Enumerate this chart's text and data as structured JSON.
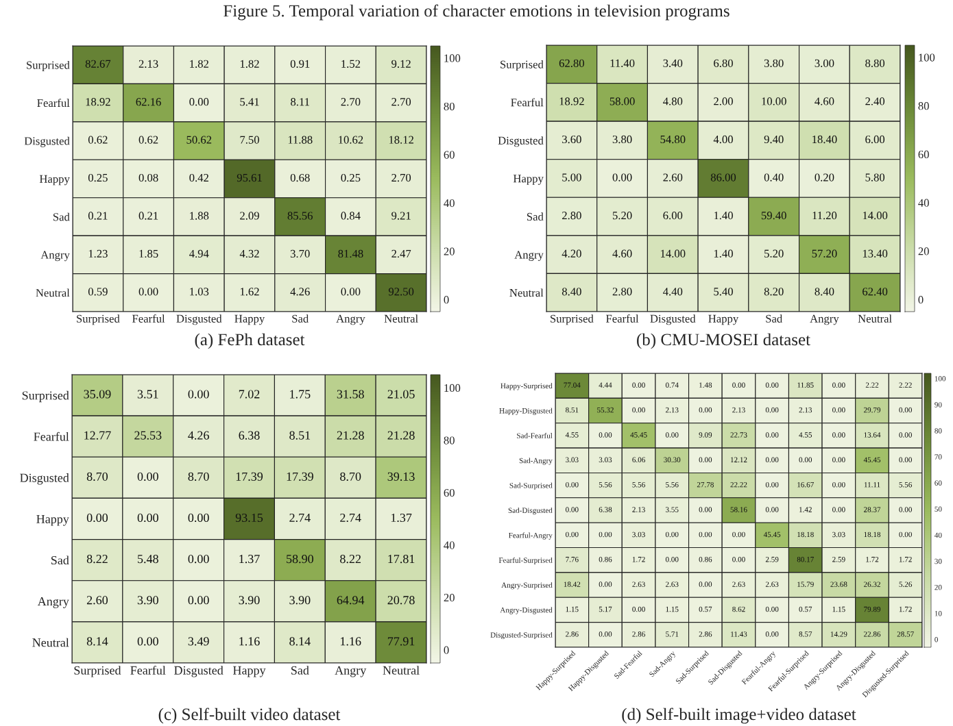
{
  "chart_data": [
    {
      "type": "heatmap",
      "title": "Figure 5. Temporal variation of character emotions in television programs",
      "subtitle": "(a) FePh dataset",
      "categories": [
        "Surprised",
        "Fearful",
        "Disgusted",
        "Happy",
        "Sad",
        "Angry",
        "Neutral"
      ],
      "y_categories": [
        "Surprised",
        "Fearful",
        "Disgusted",
        "Happy",
        "Sad",
        "Angry",
        "Neutral"
      ],
      "cells": [
        [
          82.67,
          2.13,
          1.82,
          1.82,
          0.91,
          1.52,
          9.12
        ],
        [
          18.92,
          62.16,
          0.0,
          5.41,
          8.11,
          2.7,
          2.7
        ],
        [
          0.62,
          0.62,
          50.62,
          7.5,
          11.88,
          10.62,
          18.12
        ],
        [
          0.25,
          0.08,
          0.42,
          95.61,
          0.68,
          0.25,
          2.7
        ],
        [
          0.21,
          0.21,
          1.88,
          2.09,
          85.56,
          0.84,
          9.21
        ],
        [
          1.23,
          1.85,
          4.94,
          4.32,
          3.7,
          81.48,
          2.47
        ],
        [
          0.59,
          0.0,
          1.03,
          1.62,
          4.26,
          0.0,
          92.5
        ]
      ],
      "cell_labels": [
        [
          "82.67",
          "2.13",
          "1.82",
          "1.82",
          "0.91",
          "1.52",
          "9.12"
        ],
        [
          "18.92",
          "62.16",
          "0.00",
          "5.41",
          "8.11",
          "2.70",
          "2.70"
        ],
        [
          "0.62",
          "0.62",
          "50.62",
          "7.50",
          "11.88",
          "10.62",
          "18.12"
        ],
        [
          "0.25",
          "0.08",
          "0.42",
          "95.61",
          "0.68",
          "0.25",
          "2.70"
        ],
        [
          "0.21",
          "0.21",
          "1.88",
          "2.09",
          "85.56",
          "0.84",
          "9.21"
        ],
        [
          "1.23",
          "1.85",
          "4.94",
          "4.32",
          "3.70",
          "81.48",
          "2.47"
        ],
        [
          "0.59",
          "0.00",
          "1.03",
          "1.62",
          "4.26",
          "0.00",
          "92.50"
        ]
      ],
      "clim": [
        -5,
        105
      ],
      "cticks": [
        0,
        20,
        40,
        60,
        80,
        100
      ]
    },
    {
      "type": "heatmap",
      "subtitle": "(b) CMU-MOSEI dataset",
      "categories": [
        "Surprised",
        "Fearful",
        "Disgusted",
        "Happy",
        "Sad",
        "Angry",
        "Neutral"
      ],
      "y_categories": [
        "Surprised",
        "Fearful",
        "Disgusted",
        "Happy",
        "Sad",
        "Angry",
        "Neutral"
      ],
      "cells": [
        [
          62.8,
          11.4,
          3.4,
          6.8,
          3.8,
          3.0,
          8.8
        ],
        [
          18.92,
          58.0,
          4.8,
          2.0,
          10.0,
          4.6,
          2.4
        ],
        [
          3.6,
          3.8,
          54.8,
          4.0,
          9.4,
          18.4,
          6.0
        ],
        [
          5.0,
          0.0,
          2.6,
          86.0,
          0.4,
          0.2,
          5.8
        ],
        [
          2.8,
          5.2,
          6.0,
          1.4,
          59.4,
          11.2,
          14.0
        ],
        [
          4.2,
          4.6,
          14.0,
          1.4,
          5.2,
          57.2,
          13.4
        ],
        [
          8.4,
          2.8,
          4.4,
          5.4,
          8.2,
          8.4,
          62.4
        ]
      ],
      "cell_labels": [
        [
          "62.80",
          "11.40",
          "3.40",
          "6.80",
          "3.80",
          "3.00",
          "8.80"
        ],
        [
          "18.92",
          "58.00",
          "4.80",
          "2.00",
          "10.00",
          "4.60",
          "2.40"
        ],
        [
          "3.60",
          "3.80",
          "54.80",
          "4.00",
          "9.40",
          "18.40",
          "6.00"
        ],
        [
          "5.00",
          "0.00",
          "2.60",
          "86.00",
          "0.40",
          "0.20",
          "5.80"
        ],
        [
          "2.80",
          "5.20",
          "6.00",
          "1.40",
          "59.40",
          "11.20",
          "14.00"
        ],
        [
          "4.20",
          "4.60",
          "14.00",
          "1.40",
          "5.20",
          "57.20",
          "13.40"
        ],
        [
          "8.40",
          "2.80",
          "4.40",
          "5.40",
          "8.20",
          "8.40",
          "62.40"
        ]
      ],
      "clim": [
        -5,
        105
      ],
      "cticks": [
        0,
        20,
        40,
        60,
        80,
        100
      ]
    },
    {
      "type": "heatmap",
      "subtitle": "(c) Self-built video dataset",
      "categories": [
        "Surprised",
        "Fearful",
        "Disgusted",
        "Happy",
        "Sad",
        "Angry",
        "Neutral"
      ],
      "y_categories": [
        "Surprised",
        "Fearful",
        "Disgusted",
        "Happy",
        "Sad",
        "Angry",
        "Neutral"
      ],
      "cells": [
        [
          35.09,
          3.51,
          0.0,
          7.02,
          1.75,
          31.58,
          21.05
        ],
        [
          12.77,
          25.53,
          4.26,
          6.38,
          8.51,
          21.28,
          21.28
        ],
        [
          8.7,
          0.0,
          8.7,
          17.39,
          17.39,
          8.7,
          39.13
        ],
        [
          0.0,
          0.0,
          0.0,
          93.15,
          2.74,
          2.74,
          1.37
        ],
        [
          8.22,
          5.48,
          0.0,
          1.37,
          58.9,
          8.22,
          17.81
        ],
        [
          2.6,
          3.9,
          0.0,
          3.9,
          3.9,
          64.94,
          20.78
        ],
        [
          8.14,
          0.0,
          3.49,
          1.16,
          8.14,
          1.16,
          77.91
        ]
      ],
      "cell_labels": [
        [
          "35.09",
          "3.51",
          "0.00",
          "7.02",
          "1.75",
          "31.58",
          "21.05"
        ],
        [
          "12.77",
          "25.53",
          "4.26",
          "6.38",
          "8.51",
          "21.28",
          "21.28"
        ],
        [
          "8.70",
          "0.00",
          "8.70",
          "17.39",
          "17.39",
          "8.70",
          "39.13"
        ],
        [
          "0.00",
          "0.00",
          "0.00",
          "93.15",
          "2.74",
          "2.74",
          "1.37"
        ],
        [
          "8.22",
          "5.48",
          "0.00",
          "1.37",
          "58.90",
          "8.22",
          "17.81"
        ],
        [
          "2.60",
          "3.90",
          "0.00",
          "3.90",
          "3.90",
          "64.94",
          "20.78"
        ],
        [
          "8.14",
          "0.00",
          "3.49",
          "1.16",
          "8.14",
          "1.16",
          "77.91"
        ]
      ],
      "clim": [
        -5,
        105
      ],
      "cticks": [
        0,
        20,
        40,
        60,
        80,
        100
      ]
    },
    {
      "type": "heatmap",
      "subtitle": "(d) Self-built image+video dataset",
      "categories": [
        "Happy-Surprised",
        "Happy-Disgusted",
        "Sad-Fearful",
        "Sad-Angry",
        "Sad-Surprised",
        "Sad-Disgusted",
        "Fearful-Angry",
        "Fearful-Surprised",
        "Angry-Surprised",
        "Angry-Disgusted",
        "Disgusted-Surprised"
      ],
      "y_categories": [
        "Happy-Surprised",
        "Happy-Disgusted",
        "Sad-Fearful",
        "Sad-Angry",
        "Sad-Surprised",
        "Sad-Disgusted",
        "Fearful-Angry",
        "Fearful-Surprised",
        "Angry-Surprised",
        "Angry-Disgusted",
        "Disgusted-Surprised"
      ],
      "cells": [
        [
          77.04,
          4.44,
          0.0,
          0.74,
          1.48,
          0.0,
          0.0,
          11.85,
          0.0,
          2.22,
          2.22
        ],
        [
          8.51,
          55.32,
          0.0,
          2.13,
          0.0,
          2.13,
          0.0,
          2.13,
          0.0,
          29.79,
          0.0
        ],
        [
          4.55,
          0.0,
          45.45,
          0.0,
          9.09,
          22.73,
          0.0,
          4.55,
          0.0,
          13.64,
          0.0
        ],
        [
          3.03,
          3.03,
          6.06,
          30.3,
          0.0,
          12.12,
          0.0,
          0.0,
          0.0,
          45.45,
          0.0
        ],
        [
          0.0,
          5.56,
          5.56,
          5.56,
          27.78,
          22.22,
          0.0,
          16.67,
          0.0,
          11.11,
          5.56
        ],
        [
          0.0,
          6.38,
          2.13,
          3.55,
          0.0,
          58.16,
          0.0,
          1.42,
          0.0,
          28.37,
          0.0
        ],
        [
          0.0,
          0.0,
          3.03,
          0.0,
          0.0,
          0.0,
          45.45,
          18.18,
          3.03,
          18.18,
          0.0
        ],
        [
          7.76,
          0.86,
          1.72,
          0.0,
          0.86,
          0.0,
          2.59,
          80.17,
          2.59,
          1.72,
          1.72
        ],
        [
          18.42,
          0.0,
          2.63,
          2.63,
          0.0,
          2.63,
          2.63,
          15.79,
          23.68,
          26.32,
          5.26
        ],
        [
          1.15,
          5.17,
          0.0,
          1.15,
          0.57,
          8.62,
          0.0,
          0.57,
          1.15,
          79.89,
          1.72
        ],
        [
          2.86,
          0.0,
          2.86,
          5.71,
          2.86,
          11.43,
          0.0,
          8.57,
          14.29,
          22.86,
          28.57
        ]
      ],
      "cell_labels": [
        [
          "77.04",
          "4.44",
          "0.00",
          "0.74",
          "1.48",
          "0.00",
          "0.00",
          "11.85",
          "0.00",
          "2.22",
          "2.22"
        ],
        [
          "8.51",
          "55.32",
          "0.00",
          "2.13",
          "0.00",
          "2.13",
          "0.00",
          "2.13",
          "0.00",
          "29.79",
          "0.00"
        ],
        [
          "4.55",
          "0.00",
          "45.45",
          "0.00",
          "9.09",
          "22.73",
          "0.00",
          "4.55",
          "0.00",
          "13.64",
          "0.00"
        ],
        [
          "3.03",
          "3.03",
          "6.06",
          "30.30",
          "0.00",
          "12.12",
          "0.00",
          "0.00",
          "0.00",
          "45.45",
          "0.00"
        ],
        [
          "0.00",
          "5.56",
          "5.56",
          "5.56",
          "27.78",
          "22.22",
          "0.00",
          "16.67",
          "0.00",
          "11.11",
          "5.56"
        ],
        [
          "0.00",
          "6.38",
          "2.13",
          "3.55",
          "0.00",
          "58.16",
          "0.00",
          "1.42",
          "0.00",
          "28.37",
          "0.00"
        ],
        [
          "0.00",
          "0.00",
          "3.03",
          "0.00",
          "0.00",
          "0.00",
          "45.45",
          "18.18",
          "3.03",
          "18.18",
          "0.00"
        ],
        [
          "7.76",
          "0.86",
          "1.72",
          "0.00",
          "0.86",
          "0.00",
          "2.59",
          "80.17",
          "2.59",
          "1.72",
          "1.72"
        ],
        [
          "18.42",
          "0.00",
          "2.63",
          "2.63",
          "0.00",
          "2.63",
          "2.63",
          "15.79",
          "23.68",
          "26.32",
          "5.26"
        ],
        [
          "1.15",
          "5.17",
          "0.00",
          "1.15",
          "0.57",
          "8.62",
          "0.00",
          "0.57",
          "1.15",
          "79.89",
          "1.72"
        ],
        [
          "2.86",
          "0.00",
          "2.86",
          "5.71",
          "2.86",
          "11.43",
          "0.00",
          "8.57",
          "14.29",
          "22.86",
          "28.57"
        ]
      ],
      "clim": [
        -3,
        102
      ],
      "cticks": [
        0,
        10,
        20,
        30,
        40,
        50,
        60,
        70,
        80,
        90,
        100
      ]
    }
  ]
}
